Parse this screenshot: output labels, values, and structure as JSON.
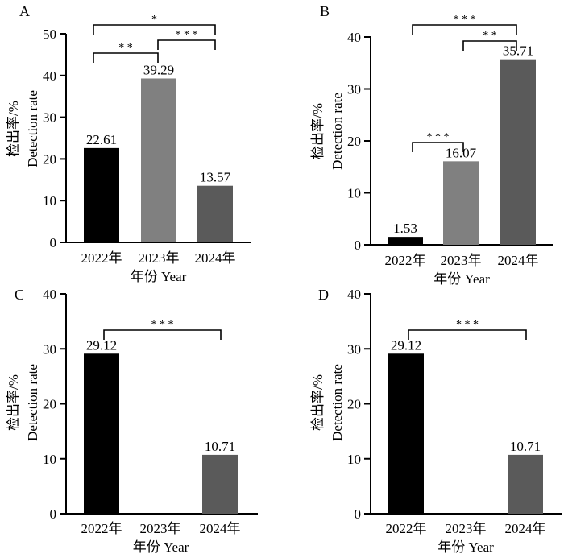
{
  "chart_data": [
    {
      "panel_label": "A",
      "type": "bar",
      "categories": [
        "2022年",
        "2023年",
        "2024年"
      ],
      "values": [
        22.61,
        39.29,
        13.57
      ],
      "value_labels": [
        "22.61",
        "39.29",
        "13.57"
      ],
      "colors": [
        "#000000",
        "#808080",
        "#5a5a5a"
      ],
      "xlabel": "年份 Year",
      "ylabel_line1": "检出率/%",
      "ylabel_line2": "Detection rate",
      "ylim": [
        0,
        50
      ],
      "yticks": [
        "0",
        "10",
        "20",
        "30",
        "40",
        "50"
      ],
      "significance": [
        {
          "from": 0,
          "to": 1,
          "label": "* *",
          "level": 1
        },
        {
          "from": 1,
          "to": 2,
          "label": "* * *",
          "level": 2
        },
        {
          "from": 0,
          "to": 2,
          "label": "*",
          "level": 3
        }
      ]
    },
    {
      "panel_label": "B",
      "type": "bar",
      "categories": [
        "2022年",
        "2023年",
        "2024年"
      ],
      "values": [
        1.53,
        16.07,
        35.71
      ],
      "value_labels": [
        "1.53",
        "16.07",
        "35.71"
      ],
      "colors": [
        "#000000",
        "#808080",
        "#5a5a5a"
      ],
      "xlabel": "年份 Year",
      "ylabel_line1": "检出率/%",
      "ylabel_line2": "Detection rate",
      "ylim": [
        0,
        40
      ],
      "yticks": [
        "0",
        "10",
        "20",
        "30",
        "40"
      ],
      "significance": [
        {
          "from": 0,
          "to": 1,
          "label": "* * *",
          "level": 1
        },
        {
          "from": 1,
          "to": 2,
          "label": "* *",
          "level": 2
        },
        {
          "from": 0,
          "to": 2,
          "label": "* * *",
          "level": 3
        }
      ]
    },
    {
      "panel_label": "C",
      "type": "bar",
      "categories": [
        "2022年",
        "2023年",
        "2024年"
      ],
      "values": [
        29.12,
        0,
        10.71
      ],
      "value_labels": [
        "29.12",
        "",
        "10.71"
      ],
      "colors": [
        "#000000",
        "#808080",
        "#5a5a5a"
      ],
      "xlabel": "年份 Year",
      "ylabel_line1": "检出率/%",
      "ylabel_line2": "Detection rate",
      "ylim": [
        0,
        40
      ],
      "yticks": [
        "0",
        "10",
        "20",
        "30",
        "40"
      ],
      "significance": [
        {
          "from": 0,
          "to": 2,
          "label": "* * *",
          "level": 1
        }
      ]
    },
    {
      "panel_label": "D",
      "type": "bar",
      "categories": [
        "2022年",
        "2023年",
        "2024年"
      ],
      "values": [
        29.12,
        0,
        10.71
      ],
      "value_labels": [
        "29.12",
        "",
        "10.71"
      ],
      "colors": [
        "#000000",
        "#808080",
        "#5a5a5a"
      ],
      "xlabel": "年份 Year",
      "ylabel_line1": "检出率/%",
      "ylabel_line2": "Detection rate",
      "ylim": [
        0,
        40
      ],
      "yticks": [
        "0",
        "10",
        "20",
        "30",
        "40"
      ],
      "significance": [
        {
          "from": 0,
          "to": 2,
          "label": "* * *",
          "level": 1
        }
      ]
    }
  ]
}
